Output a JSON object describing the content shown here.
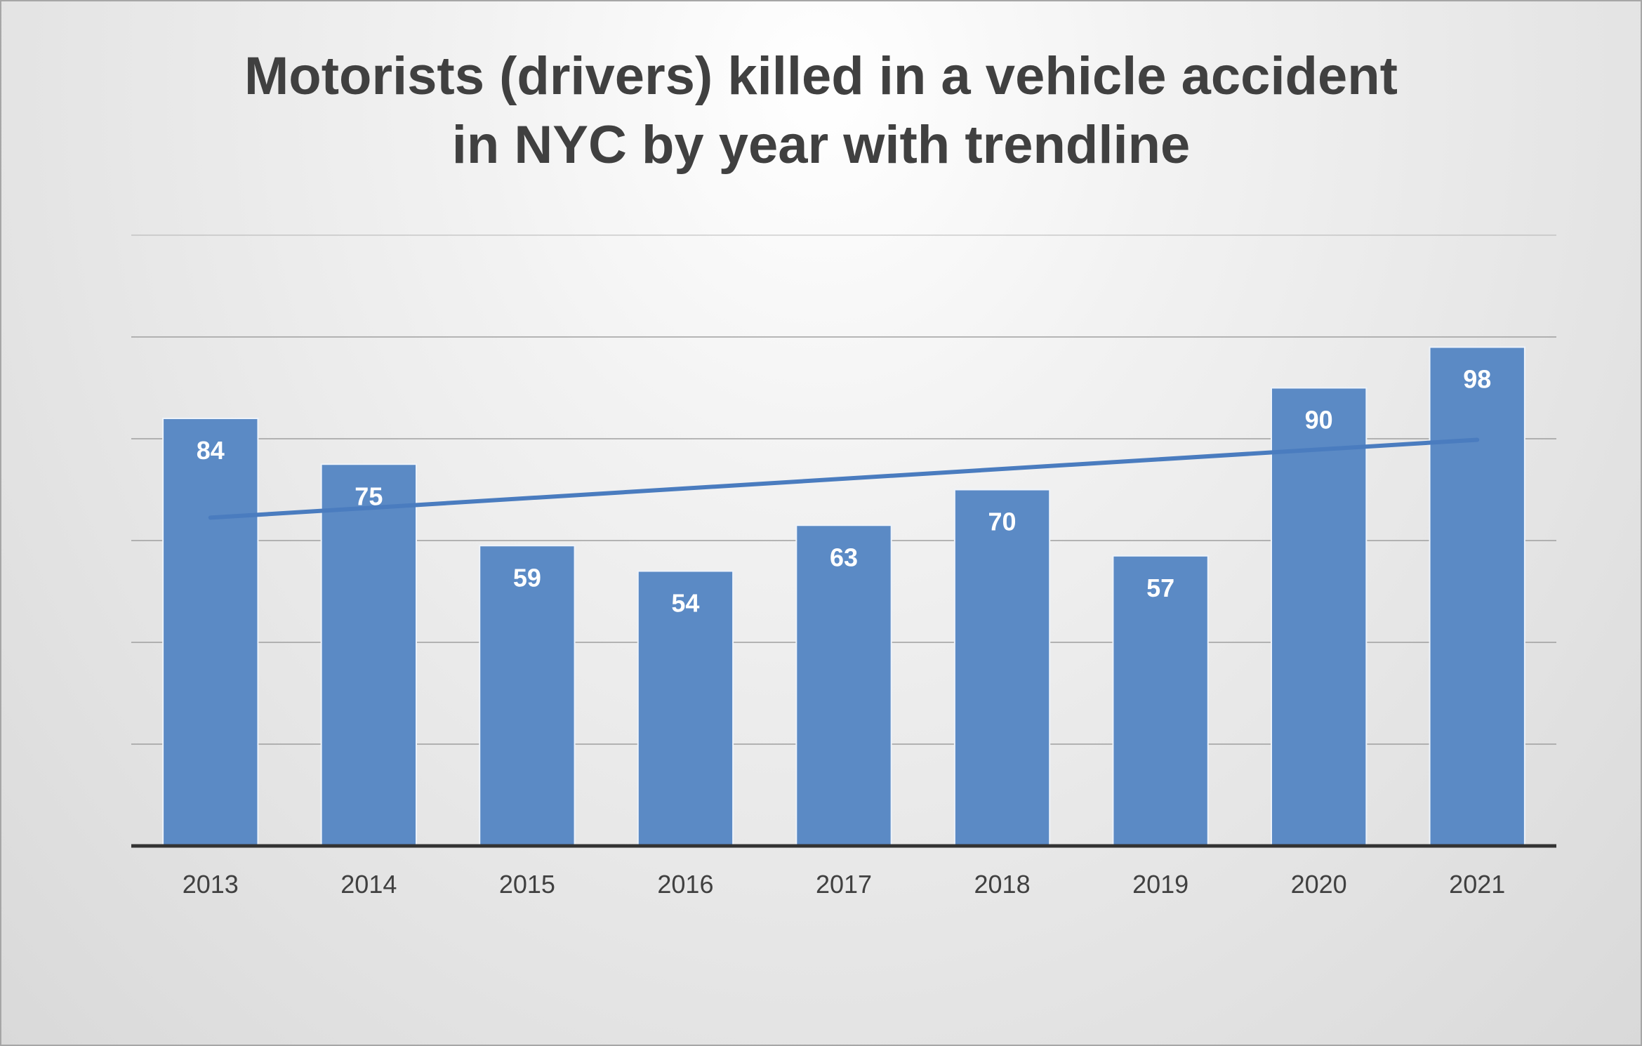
{
  "chart_data": {
    "type": "bar",
    "title_line1": "Motorists (drivers) killed in a vehicle accident",
    "title_line2": "in NYC by year with trendline",
    "xlabel": "",
    "ylabel": "",
    "categories": [
      "2013",
      "2014",
      "2015",
      "2016",
      "2017",
      "2018",
      "2019",
      "2020",
      "2021"
    ],
    "values": [
      84,
      75,
      59,
      54,
      63,
      70,
      57,
      90,
      98
    ],
    "ylim": [
      0,
      120
    ],
    "gridlines": [
      20,
      40,
      60,
      80,
      100,
      120
    ],
    "grid": true,
    "legend": "none",
    "data_labels": true,
    "trendline": {
      "type": "linear",
      "start": 64.5,
      "end": 79.8
    },
    "colors": {
      "bar": "#5b8ac5",
      "bar_border": "#eef3fa",
      "trendline": "#4a7cbf",
      "gridline": "#9a9a9a",
      "axis": "#333333"
    }
  }
}
